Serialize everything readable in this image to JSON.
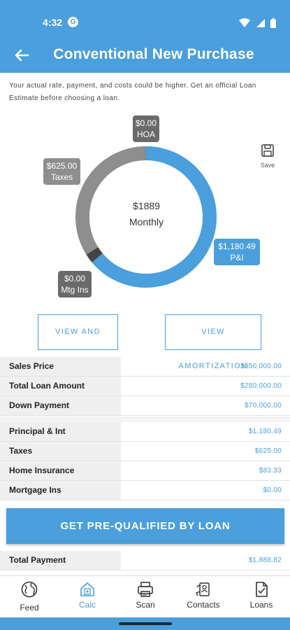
{
  "status": {
    "time": "4:32",
    "app_icon": "G"
  },
  "header": {
    "title": "Conventional New Purchase"
  },
  "disclaimer": "Your actual rate, payment, and costs could be higher. Get an official Loan Estimate before choosing a loan.",
  "chart_data": {
    "type": "donut",
    "center": {
      "amount": "$1889",
      "label": "Monthly"
    },
    "series": [
      {
        "name": "P&I",
        "value": 1180.49,
        "display": "$1,180.49",
        "color": "#4a9fdc"
      },
      {
        "name": "Mtg Ins",
        "value": 0.0,
        "display": "$0.00",
        "color": "#444444"
      },
      {
        "name": "Taxes",
        "value": 625.0,
        "display": "$625.00",
        "color": "#8e8e8e"
      },
      {
        "name": "HOA",
        "value": 0.0,
        "display": "$0.00",
        "color": "#6a6a6a"
      }
    ]
  },
  "save": {
    "label": "Save"
  },
  "buttons": {
    "share": "VIEW AND SHARE",
    "amortization": "VIEW AMORTIZATION"
  },
  "loan_rows": [
    {
      "label": "Sales Price",
      "value": "$350,000.00"
    },
    {
      "label": "Total Loan Amount",
      "value": "$280,000.00"
    },
    {
      "label": "Down Payment",
      "value": "$70,000.00"
    }
  ],
  "payment_rows": [
    {
      "label": "Principal & Int",
      "value": "$1,180.49"
    },
    {
      "label": "Taxes",
      "value": "$625.00"
    },
    {
      "label": "Home Insurance",
      "value": "$83.33"
    },
    {
      "label": "Mortgage Ins",
      "value": "$0.00"
    }
  ],
  "cta": "GET PRE-QUALIFIED BY LOAN",
  "total_row": {
    "label": "Total Payment",
    "value": "$1,888.82"
  },
  "nav": [
    {
      "label": "Feed",
      "icon": "globe-icon"
    },
    {
      "label": "Calc",
      "icon": "calculator-home-icon"
    },
    {
      "label": "Scan",
      "icon": "scanner-icon"
    },
    {
      "label": "Contacts",
      "icon": "contacts-icon"
    },
    {
      "label": "Loans",
      "icon": "loans-document-icon"
    }
  ],
  "colors": {
    "accent": "#4a9fdc"
  }
}
